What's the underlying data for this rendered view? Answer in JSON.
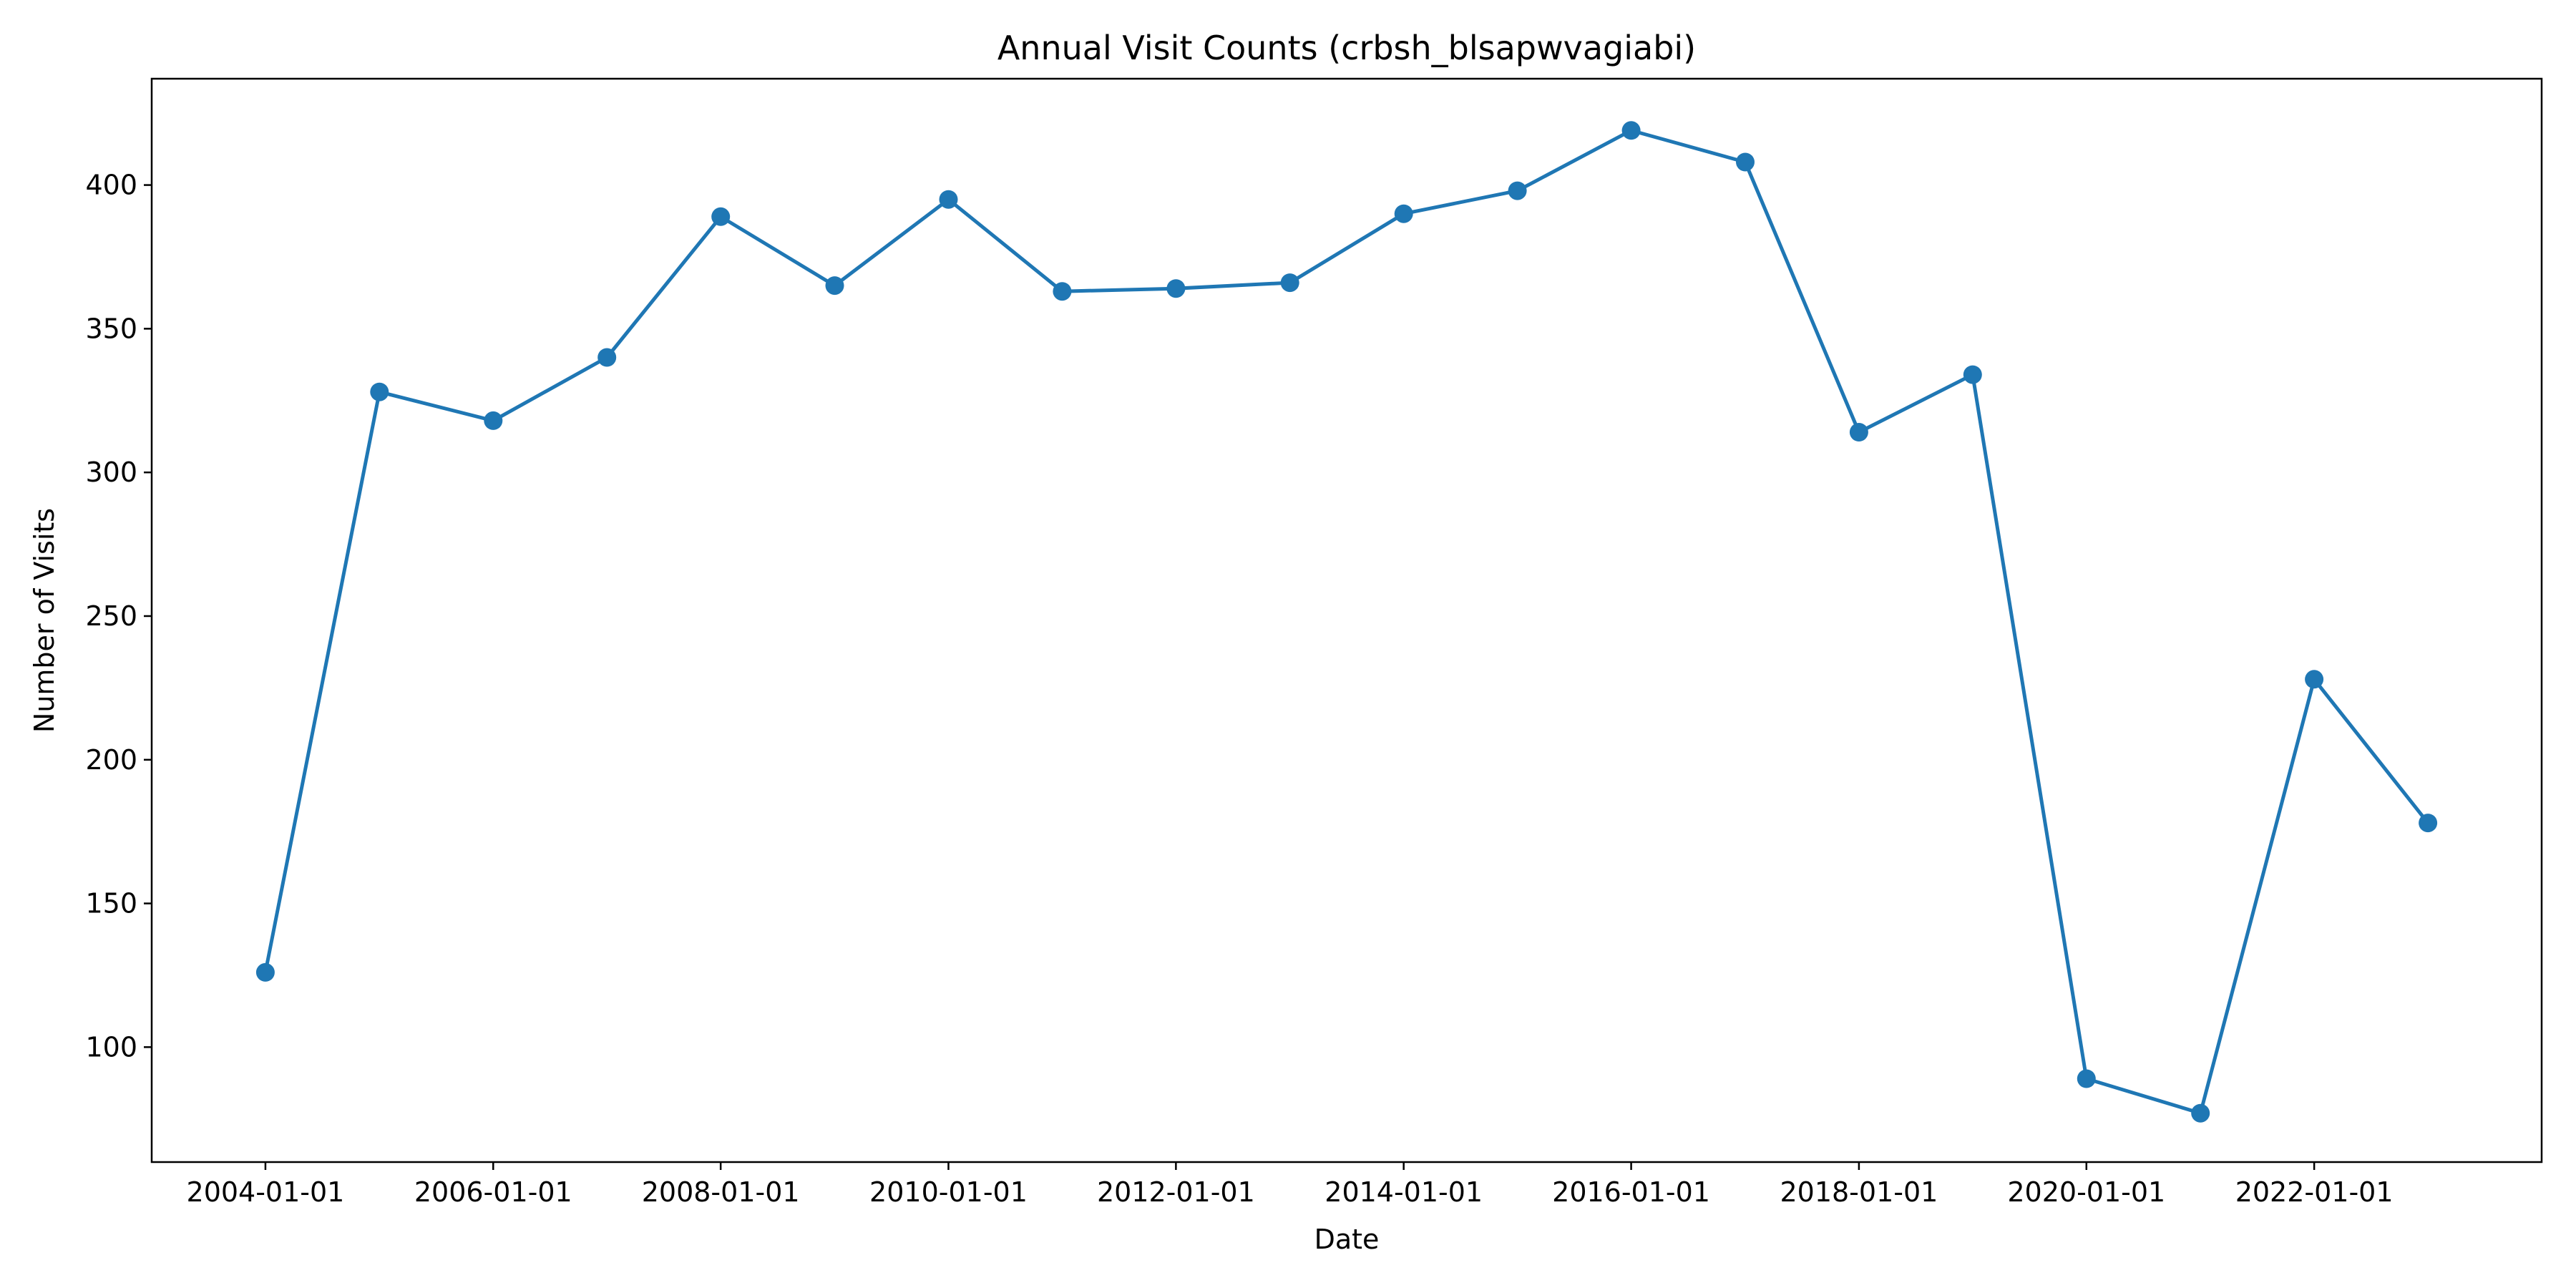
{
  "chart_data": {
    "type": "line",
    "title": "Annual Visit Counts (crbsh_blsapwvagiabi)",
    "xlabel": "Date",
    "ylabel": "Number of Visits",
    "x_tick_labels": [
      "2004-01-01",
      "2006-01-01",
      "2008-01-01",
      "2010-01-01",
      "2012-01-01",
      "2014-01-01",
      "2016-01-01",
      "2018-01-01",
      "2020-01-01",
      "2022-01-01"
    ],
    "y_ticks": [
      100,
      150,
      200,
      250,
      300,
      350,
      400
    ],
    "ylim": [
      60,
      437
    ],
    "xlim": [
      "2003-01-01",
      "2024-01-01"
    ],
    "grid": false,
    "legend": false,
    "series": [
      {
        "color": "#1f77b4",
        "marker": "circle",
        "x": [
          "2004-01-01",
          "2005-01-01",
          "2006-01-01",
          "2007-01-01",
          "2008-01-01",
          "2009-01-01",
          "2010-01-01",
          "2011-01-01",
          "2012-01-01",
          "2013-01-01",
          "2014-01-01",
          "2015-01-01",
          "2016-01-01",
          "2017-01-01",
          "2018-01-01",
          "2019-01-01",
          "2020-01-01",
          "2021-01-01",
          "2022-01-01",
          "2023-01-01"
        ],
        "values": [
          126,
          328,
          318,
          340,
          389,
          365,
          395,
          363,
          364,
          366,
          390,
          398,
          419,
          408,
          314,
          334,
          89,
          77,
          228,
          178
        ]
      }
    ]
  }
}
